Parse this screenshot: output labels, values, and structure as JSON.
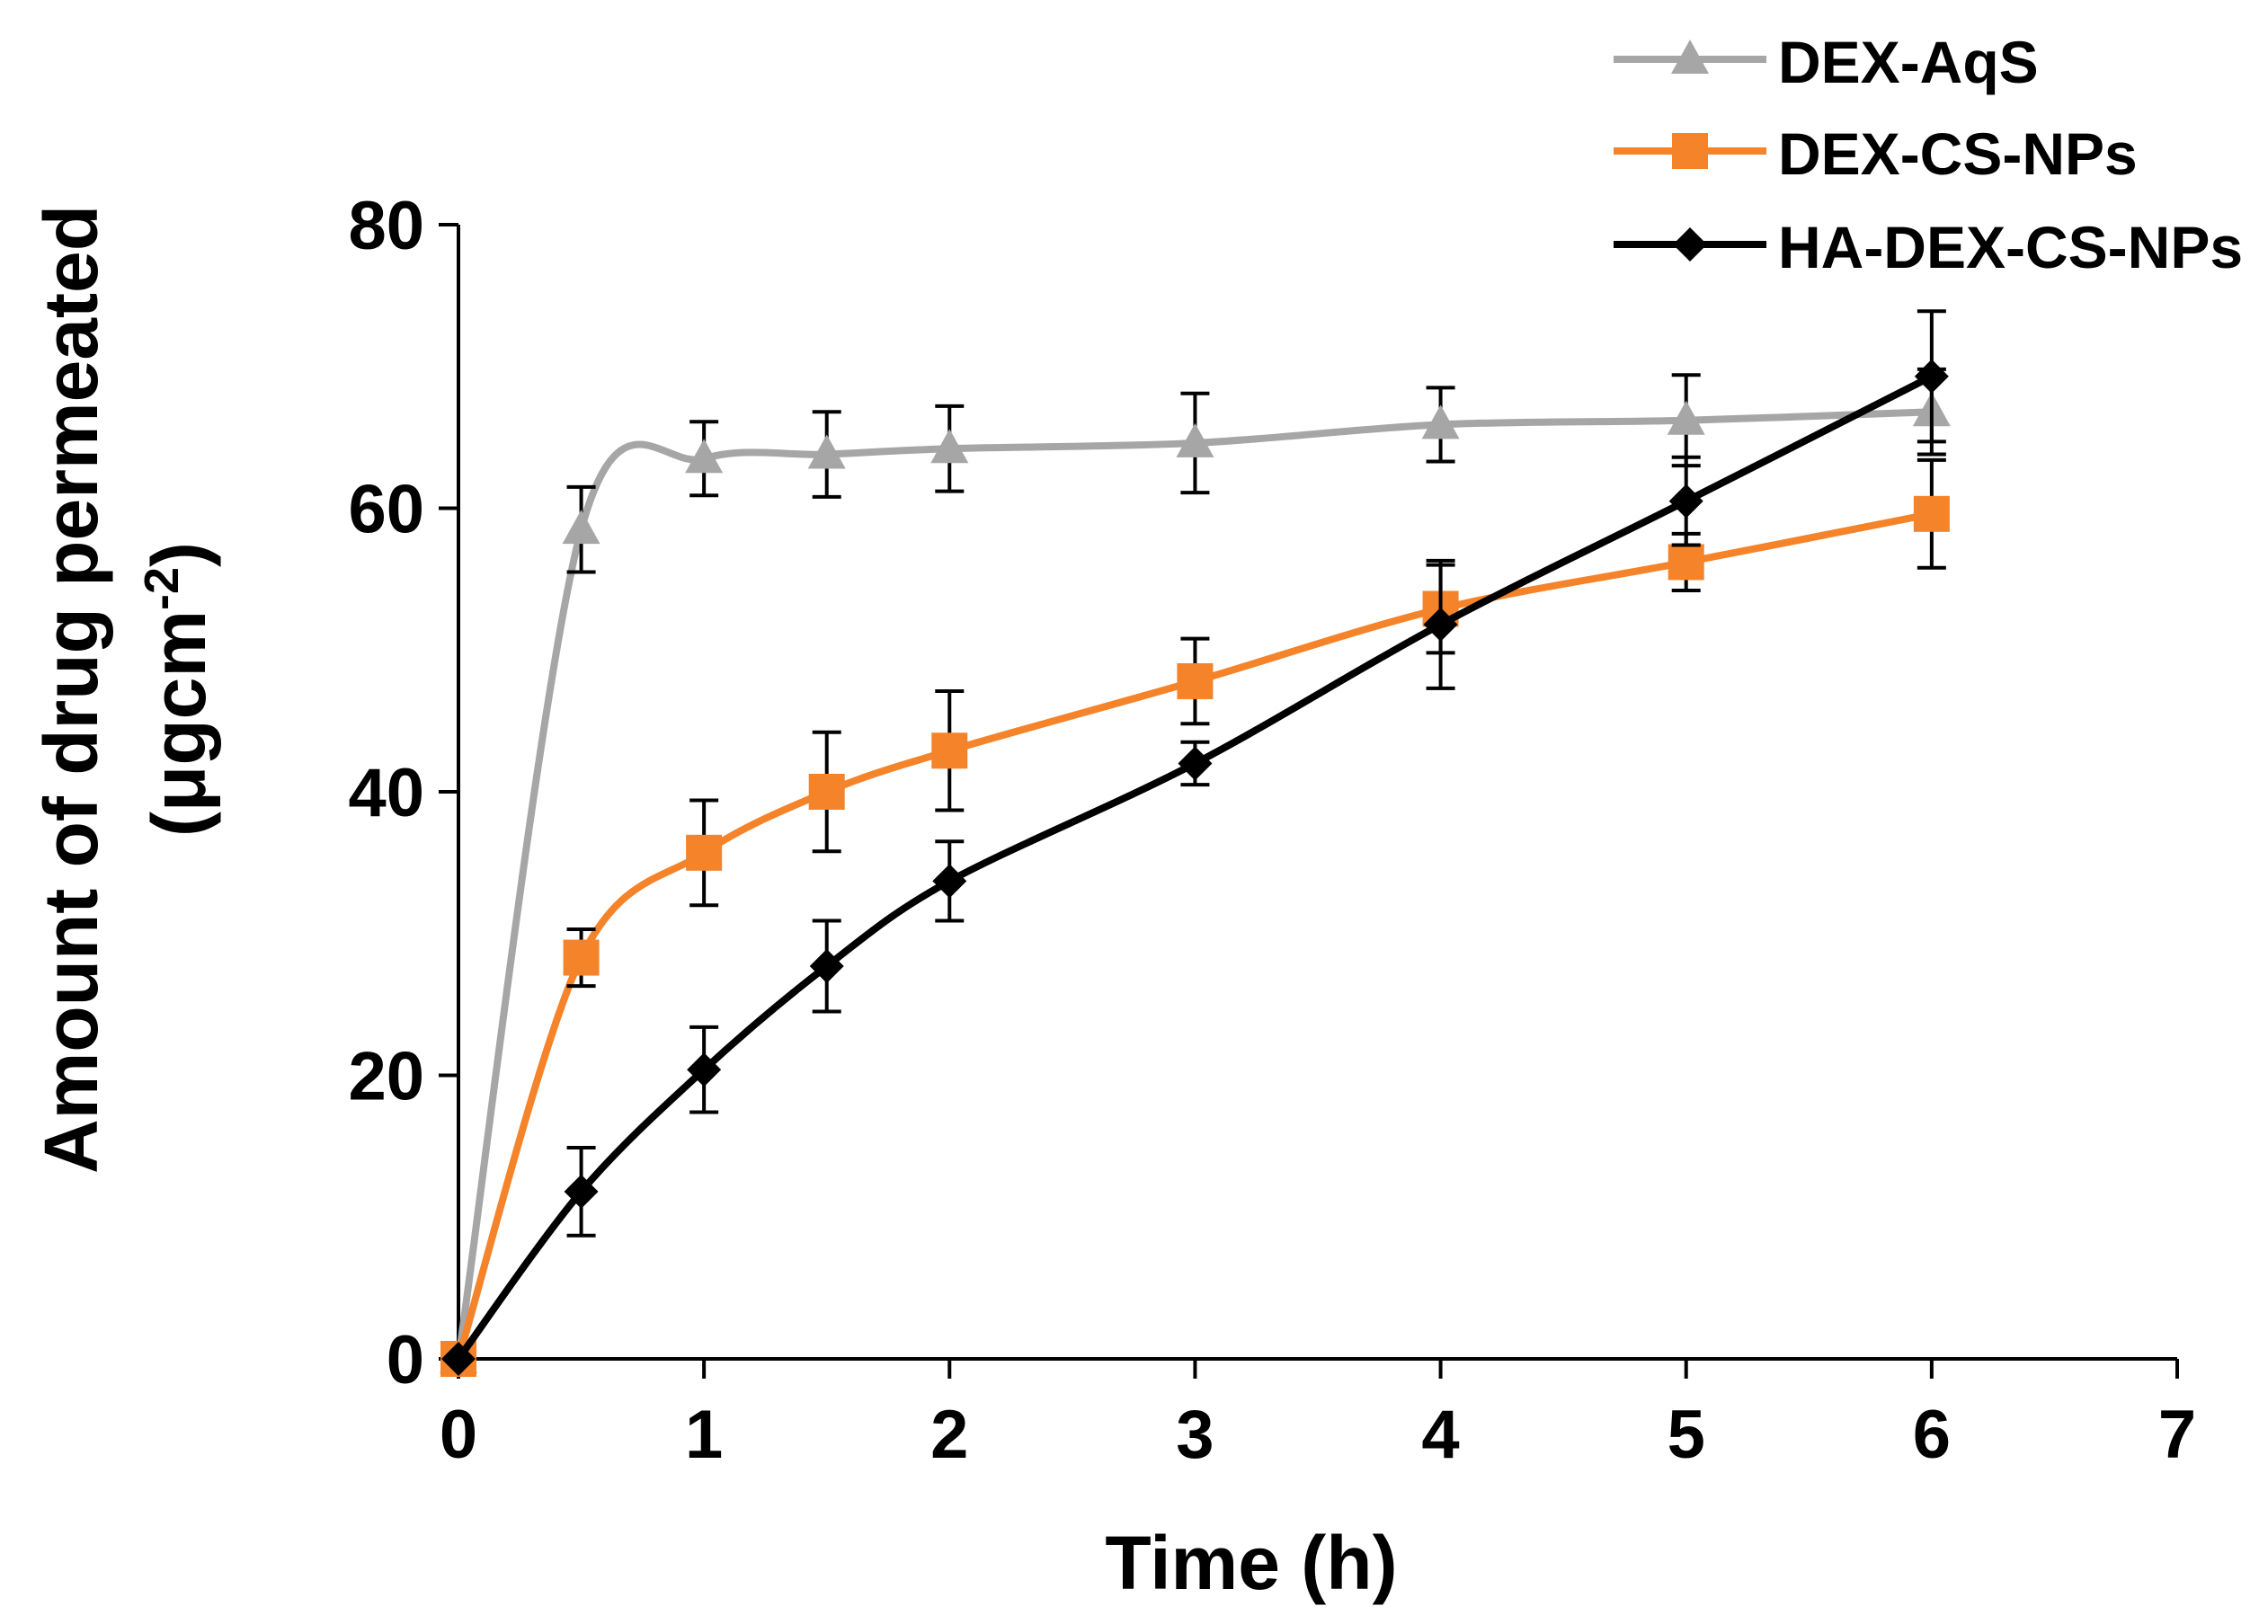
{
  "chart_data": {
    "type": "line",
    "xlabel": "Time (h)",
    "ylabel": "Amount of drug permeated",
    "ylabel_unit_prefix": "(μgcm",
    "ylabel_unit_sup": "-2",
    "ylabel_unit_suffix": ")",
    "xlim": [
      0,
      7
    ],
    "ylim": [
      0,
      80
    ],
    "x_ticks": [
      "0",
      "1",
      "2",
      "3",
      "4",
      "5",
      "6",
      "7"
    ],
    "y_ticks": [
      "0",
      "20",
      "40",
      "60",
      "80"
    ],
    "grid": false,
    "legend_position": "top-right",
    "x": [
      0,
      0.5,
      1,
      1.5,
      2,
      3,
      4,
      5,
      6
    ],
    "series": [
      {
        "name": "DEX-AqS",
        "color": "#a6a6a6",
        "marker": "triangle",
        "values": [
          0,
          58.5,
          63.5,
          63.8,
          64.2,
          64.6,
          65.9,
          66.2,
          66.8
        ],
        "errors": [
          0,
          3,
          2.6,
          3,
          3,
          3.5,
          2.6,
          3.2,
          3
        ]
      },
      {
        "name": "DEX-CS-NPs",
        "color": "#f5832a",
        "marker": "square",
        "values": [
          0,
          28.3,
          35.7,
          40,
          42.9,
          47.8,
          52.9,
          56.2,
          59.6
        ],
        "errors": [
          0,
          2,
          3.7,
          4.2,
          4.2,
          3,
          3.1,
          2,
          3.8
        ]
      },
      {
        "name": "HA-DEX-CS-NPs",
        "color": "#000000",
        "marker": "diamond",
        "values": [
          0,
          11.8,
          20.4,
          27.7,
          33.7,
          42,
          51.8,
          60.5,
          69.3
        ],
        "errors": [
          0,
          3.1,
          3,
          3.2,
          2.8,
          1.5,
          4.5,
          3.1,
          4.6
        ]
      }
    ]
  }
}
